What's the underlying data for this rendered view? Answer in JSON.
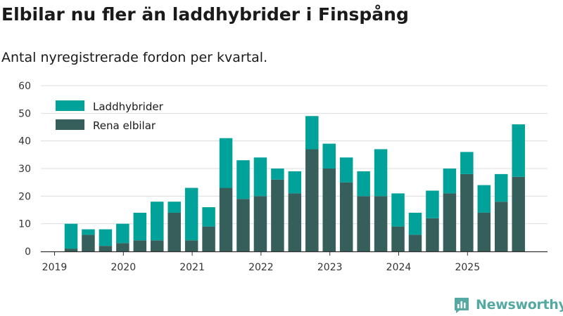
{
  "colors": {
    "rena_elbilar": "#365f5c",
    "laddhybrider": "#00a29a",
    "grid": "#dddddd",
    "axis": "#333333",
    "brand": "#56a8a3"
  },
  "brand": {
    "name": "Newsworthy",
    "icon": "newsworthy-logo-icon"
  },
  "chart_data": {
    "type": "bar",
    "stacked": true,
    "title": "Elbilar nu fler än laddhybrider i Finspång",
    "subtitle": "Antal nyregistrerade fordon per kvartal.",
    "xlabel": "",
    "ylabel": "",
    "ylim": [
      0,
      60
    ],
    "yticks": [
      0,
      10,
      20,
      30,
      40,
      50,
      60
    ],
    "xticks": [
      "2019",
      "2020",
      "2021",
      "2022",
      "2023",
      "2024",
      "2025"
    ],
    "grid": true,
    "legend_position": "top-left",
    "categories": [
      "2019 Q2",
      "2019 Q3",
      "2019 Q4",
      "2020 Q1",
      "2020 Q2",
      "2020 Q3",
      "2020 Q4",
      "2021 Q1",
      "2021 Q2",
      "2021 Q3",
      "2021 Q4",
      "2022 Q1",
      "2022 Q2",
      "2022 Q3",
      "2022 Q4",
      "2023 Q1",
      "2023 Q2",
      "2023 Q3",
      "2023 Q4",
      "2024 Q1",
      "2024 Q2",
      "2024 Q3",
      "2024 Q4",
      "2025 Q1",
      "2025 Q2",
      "2025 Q3",
      "2025 Q4"
    ],
    "series": [
      {
        "name": "Rena elbilar",
        "color": "#365f5c",
        "values": [
          1,
          6,
          2,
          3,
          4,
          4,
          14,
          4,
          9,
          23,
          19,
          20,
          26,
          21,
          37,
          30,
          25,
          20,
          20,
          9,
          6,
          12,
          21,
          28,
          14,
          18,
          27
        ]
      },
      {
        "name": "Laddhybrider",
        "color": "#00a29a",
        "values": [
          9,
          2,
          6,
          7,
          10,
          14,
          4,
          19,
          7,
          18,
          14,
          14,
          4,
          8,
          12,
          9,
          9,
          9,
          17,
          12,
          8,
          10,
          9,
          8,
          10,
          10,
          19
        ]
      }
    ]
  }
}
